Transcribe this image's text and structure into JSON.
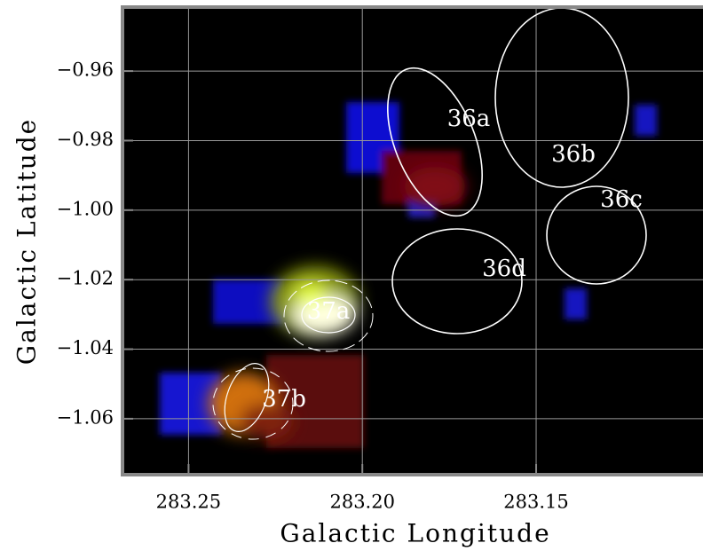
{
  "chart_data": {
    "type": "image",
    "x_label": "Galactic Longitude",
    "y_label": "Galactic Latitude",
    "xlim": [
      283.269,
      283.102
    ],
    "ylim": [
      -1.0761,
      -0.9416
    ],
    "xticks": [
      283.25,
      {
        "value": 283.2,
        "label": "283.20"
      },
      283.15
    ],
    "yticks": [
      {
        "value": -0.96,
        "label": "−0.96"
      },
      {
        "value": -0.98,
        "label": "−0.98"
      },
      {
        "value": -1.0,
        "label": "−1.00"
      },
      {
        "value": -1.02,
        "label": "−1.02"
      },
      {
        "value": -1.04,
        "label": "−1.04"
      },
      {
        "value": -1.06,
        "label": "−1.06"
      }
    ],
    "grid": true,
    "annotations": [
      "36a",
      "36b",
      "36c",
      "36d",
      "37a",
      "37b"
    ]
  }
}
